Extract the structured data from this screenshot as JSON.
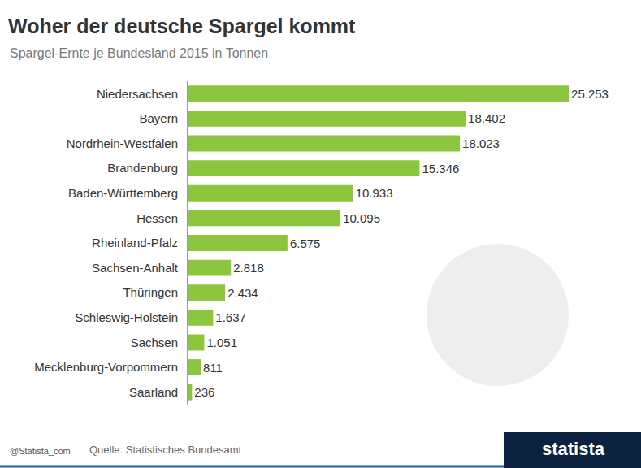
{
  "chart_data": {
    "type": "bar",
    "orientation": "horizontal",
    "title": "Woher der deutsche Spargel kommt",
    "subtitle": "Spargel-Ernte je Bundesland 2015 in Tonnen",
    "categories": [
      "Niedersachsen",
      "Bayern",
      "Nordrhein-Westfalen",
      "Brandenburg",
      "Baden-Württemberg",
      "Hessen",
      "Rheinland-Pfalz",
      "Sachsen-Anhalt",
      "Thüringen",
      "Schleswig-Holstein",
      "Sachsen",
      "Mecklenburg-Vorpommern",
      "Saarland"
    ],
    "values": [
      25253,
      18402,
      18023,
      15346,
      10933,
      10095,
      6575,
      2818,
      2434,
      1637,
      1051,
      811,
      236
    ],
    "value_labels": [
      "25.253",
      "18.402",
      "18.023",
      "15.346",
      "10.933",
      "10.095",
      "6.575",
      "2.818",
      "2.434",
      "1.637",
      "1.051",
      "811",
      "236"
    ],
    "color": "#8cc63f",
    "data_labels": true,
    "xlim": [
      0,
      28000
    ],
    "tick_labels": "y",
    "grid": false,
    "annotations": [
      "@Statista_com",
      "Quelle: Statistisches Bundesamt",
      "statista"
    ]
  }
}
